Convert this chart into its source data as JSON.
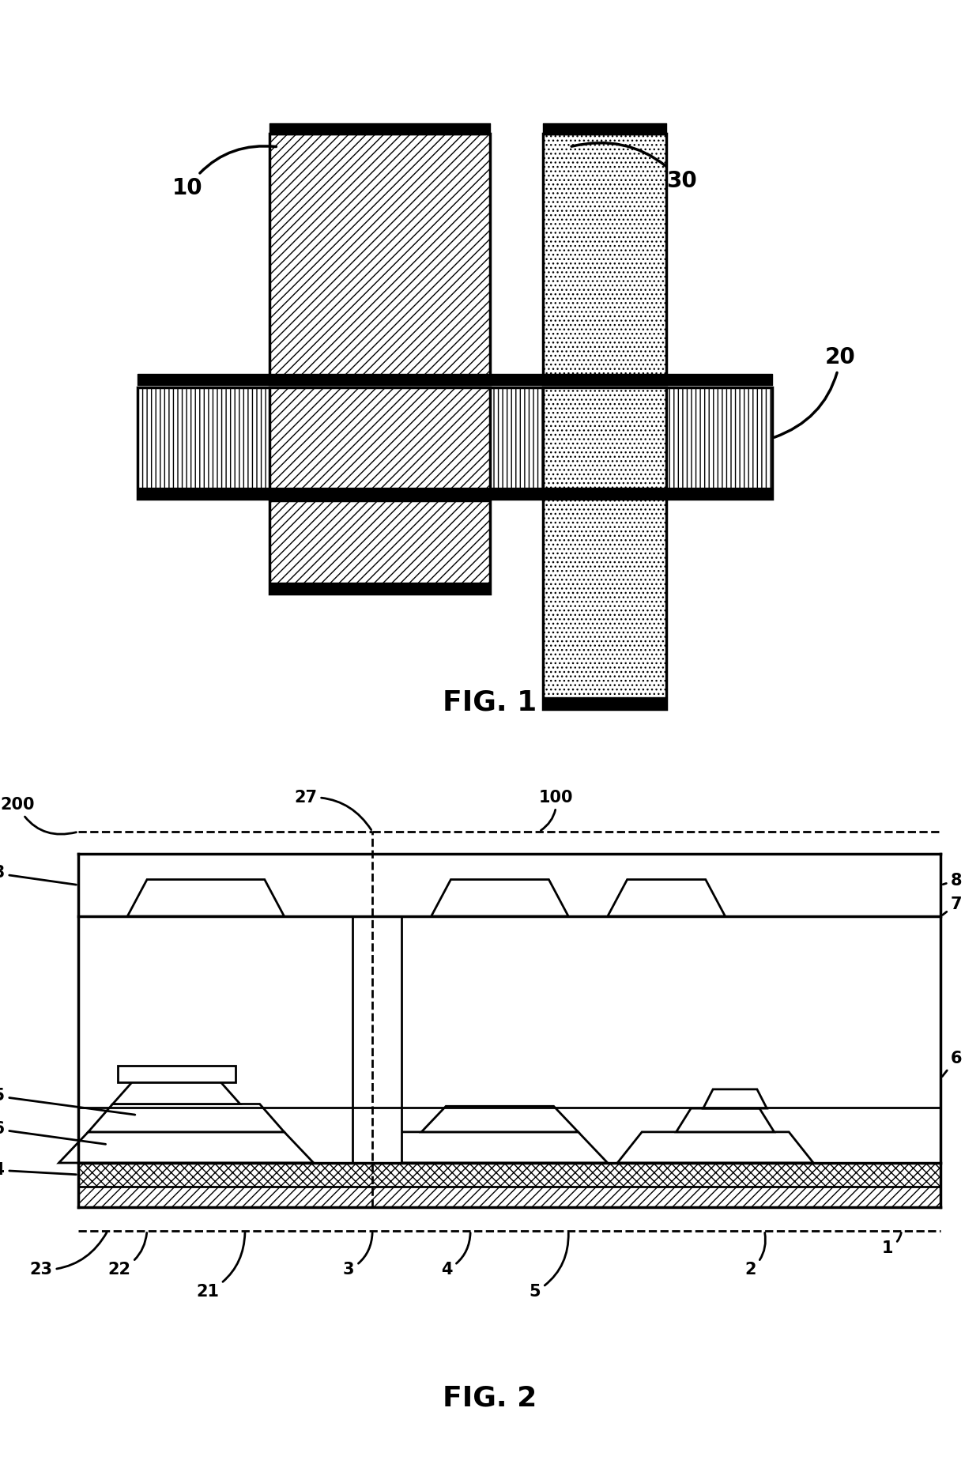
{
  "fig_width": 12.4,
  "fig_height": 18.62,
  "bg_color": "#ffffff",
  "lw": 2.5,
  "lw2": 2.0,
  "black": "#000000"
}
